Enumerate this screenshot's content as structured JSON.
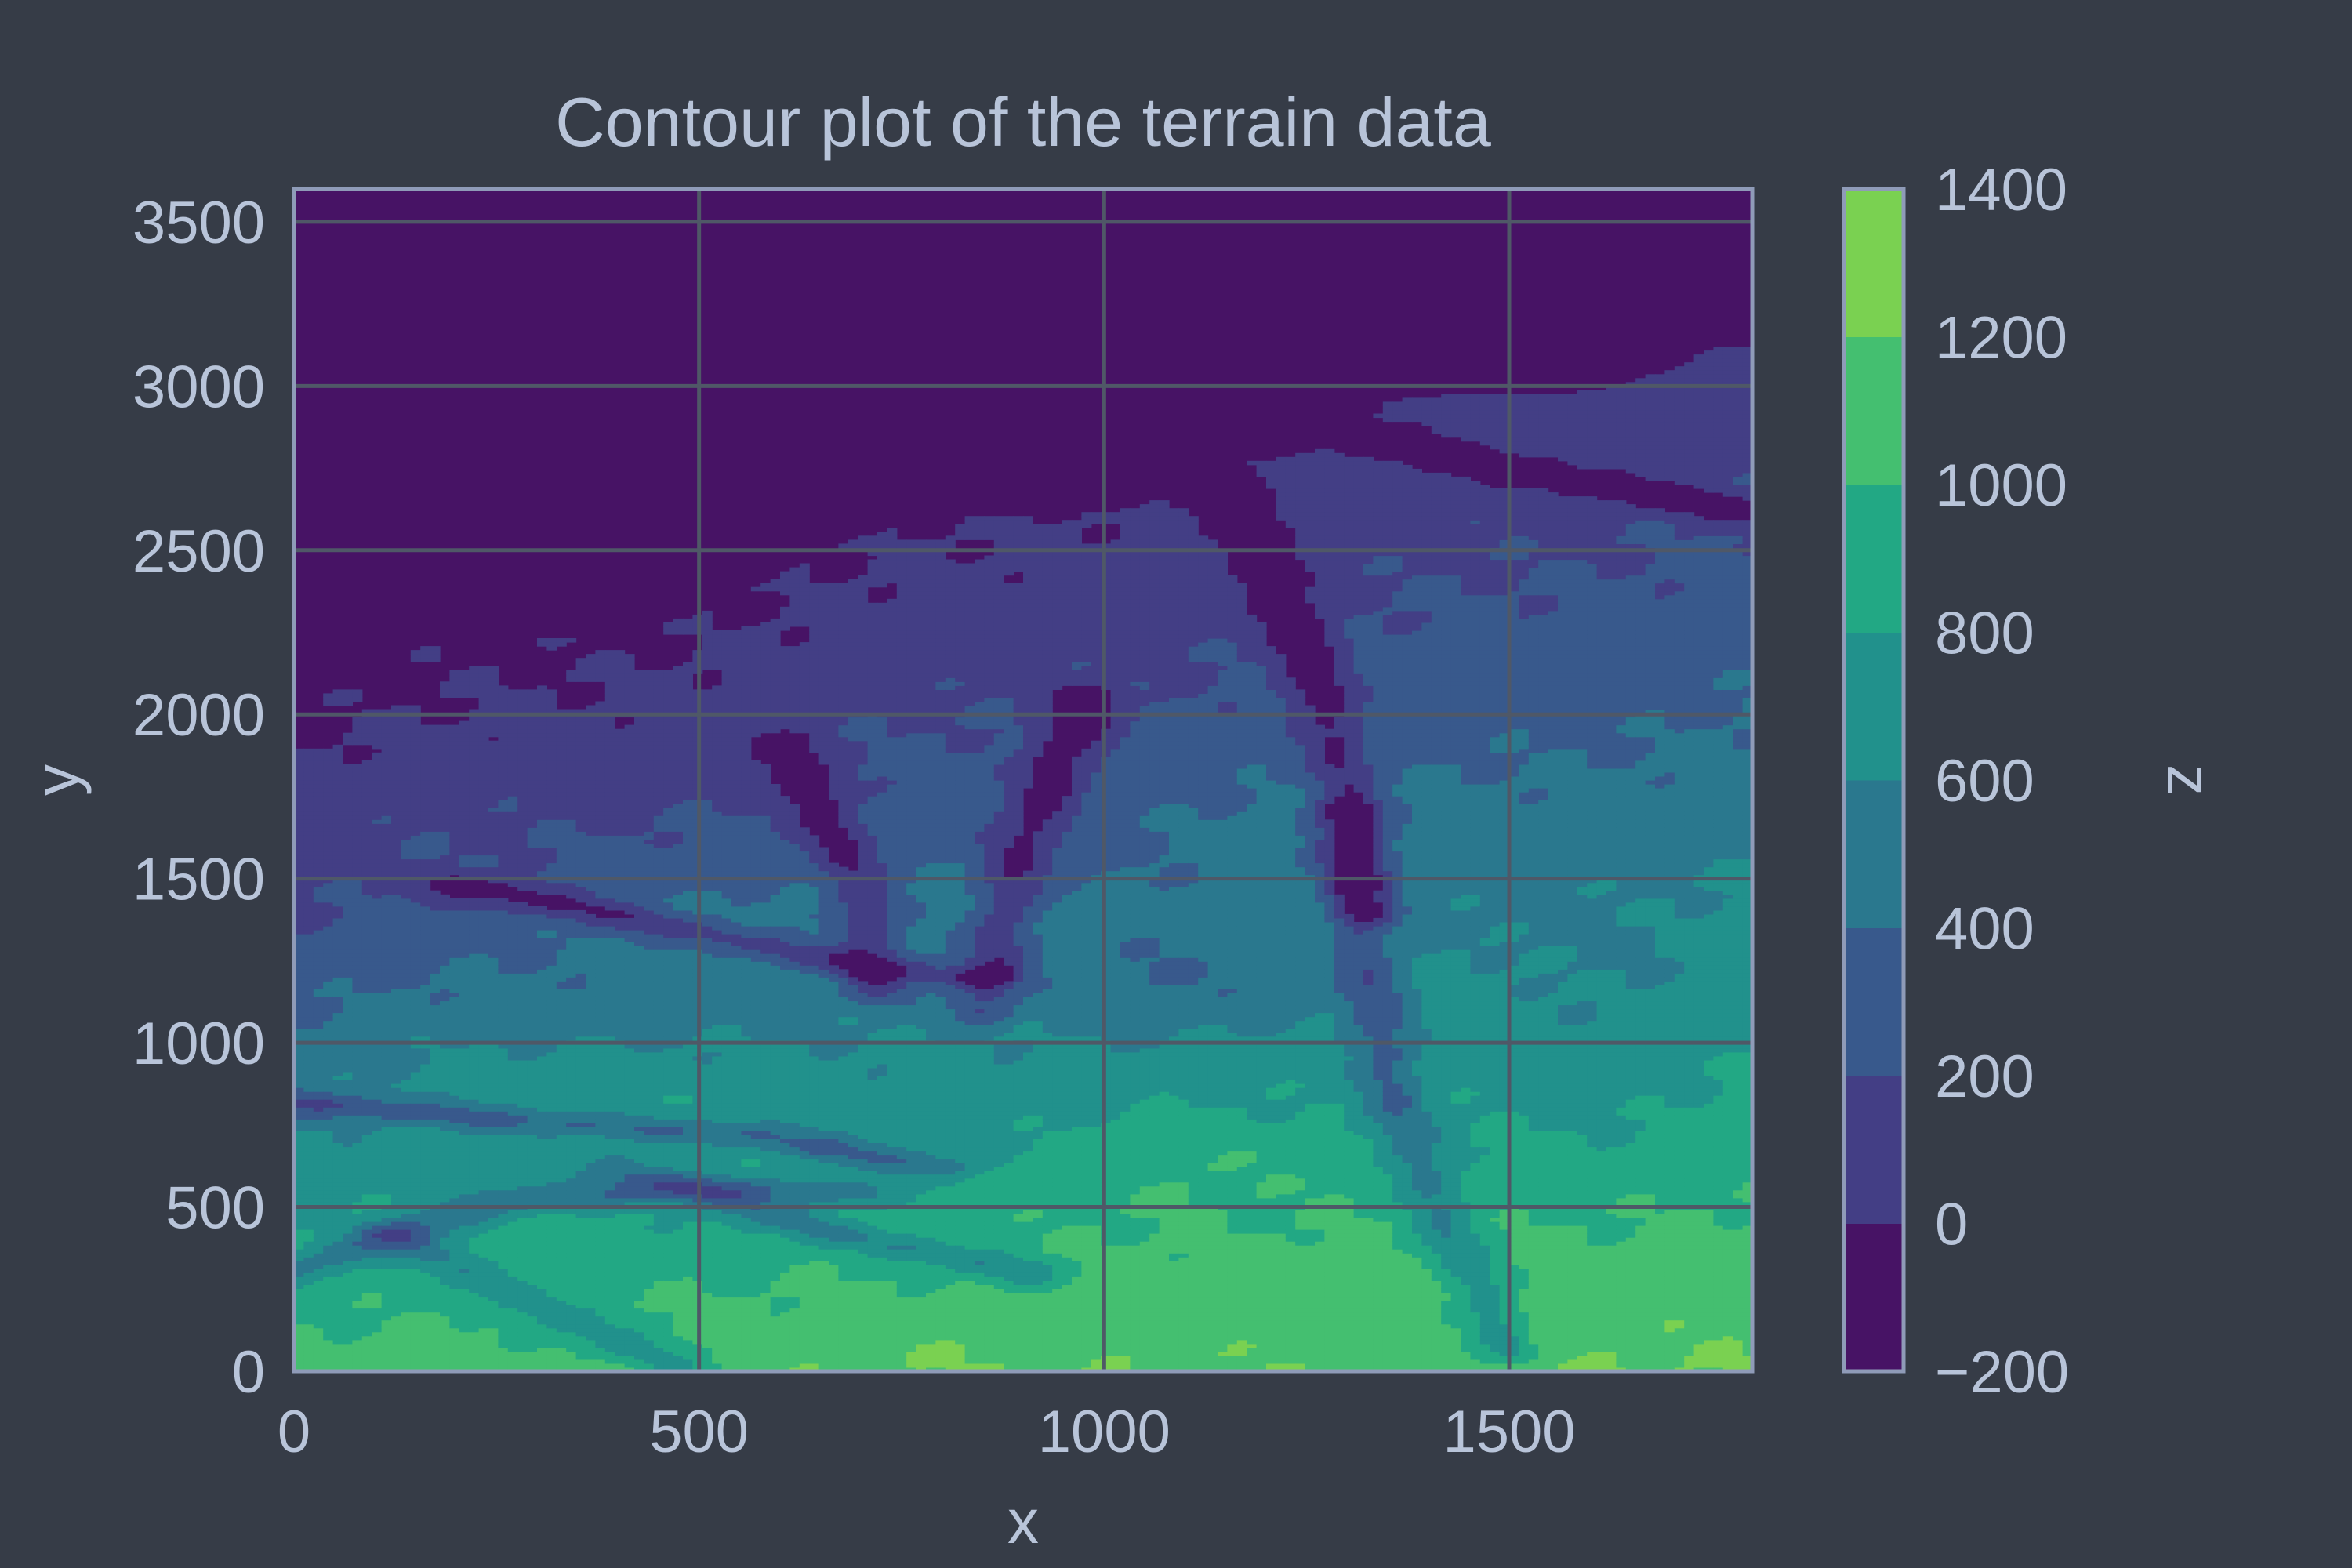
{
  "chart_data": {
    "type": "contour",
    "title": "Contour plot of the terrain data",
    "xlabel": "x",
    "ylabel": "y",
    "colorbar_label": "z",
    "xlim": [
      0,
      1800
    ],
    "ylim": [
      0,
      3600
    ],
    "xticks": [
      0,
      500,
      1000,
      1500
    ],
    "yticks": [
      0,
      500,
      1000,
      1500,
      2000,
      2500,
      3000,
      3500
    ],
    "levels": [
      -200,
      0,
      200,
      400,
      600,
      800,
      1000,
      1200,
      1400
    ],
    "level_labels": [
      "−200",
      "0",
      "200",
      "400",
      "600",
      "800",
      "1000",
      "1200",
      "1400"
    ],
    "level_colors": [
      "#471365",
      "#433e85",
      "#38598c",
      "#2a788e",
      "#21918c",
      "#22a884",
      "#44bf70",
      "#7ad151",
      "#d2e21b"
    ],
    "grid": true,
    "colormap": "viridis",
    "colors": {
      "background": "#363c47",
      "text": "#b8c4d9",
      "frame": "#8f9bb8",
      "grid": "#4f5867"
    }
  }
}
